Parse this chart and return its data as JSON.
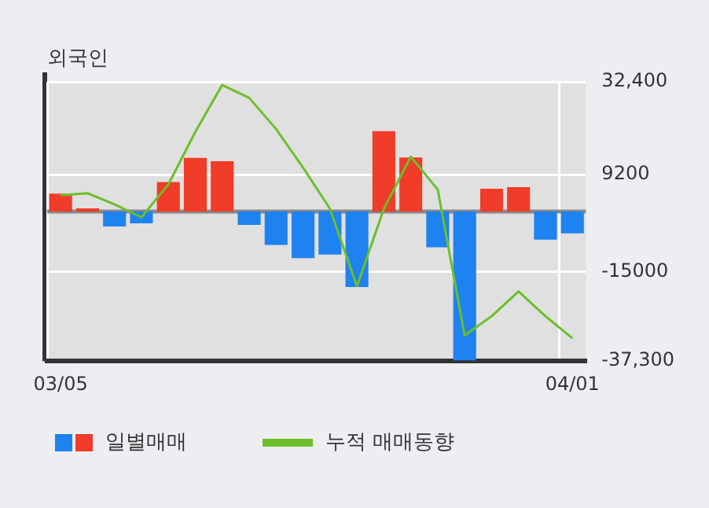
{
  "chart_data": {
    "type": "bar",
    "title": "외국인",
    "categories": [
      "03/05",
      null,
      null,
      null,
      null,
      null,
      null,
      null,
      null,
      null,
      null,
      null,
      null,
      null,
      null,
      null,
      null,
      null,
      null,
      "04/01"
    ],
    "series": [
      {
        "name": "일별매매",
        "colors": [
          "#f03c28",
          "#f03c28",
          "#1e82f0",
          "#1e82f0",
          "#f03c28",
          "#f03c28",
          "#f03c28",
          "#1e82f0",
          "#1e82f0",
          "#1e82f0",
          "#1e82f0",
          "#1e82f0",
          "#f03c28",
          "#f03c28",
          "#1e82f0",
          "#1e82f0",
          "#f03c28",
          "#f03c28",
          "#1e82f0",
          "#1e82f0"
        ],
        "values": [
          4500,
          800,
          -3700,
          -2900,
          7400,
          13400,
          12600,
          -3300,
          -8300,
          -11600,
          -10700,
          -18800,
          20100,
          13500,
          -8900,
          -37100,
          5700,
          6100,
          -7000,
          -5400
        ]
      },
      {
        "name": "누적 매매동향",
        "type": "line",
        "color": "#6cbf2a",
        "values": [
          4100,
          4600,
          1800,
          -1400,
          6800,
          19900,
          31600,
          28400,
          20600,
          11000,
          700,
          -18600,
          700,
          13700,
          5500,
          -30900,
          -26100,
          -19900,
          -26100,
          -31600
        ]
      }
    ],
    "ylim": [
      -37300,
      32400
    ],
    "yticks": [
      {
        "value": 32400,
        "label": "32,400"
      },
      9200,
      -15000,
      {
        "value": -37300,
        "label": "-37,300"
      }
    ],
    "ref_lines": [
      {
        "axis": "y",
        "value": 0,
        "label": null,
        "color": "#888888"
      }
    ],
    "grid": true,
    "legend": "bottom"
  }
}
